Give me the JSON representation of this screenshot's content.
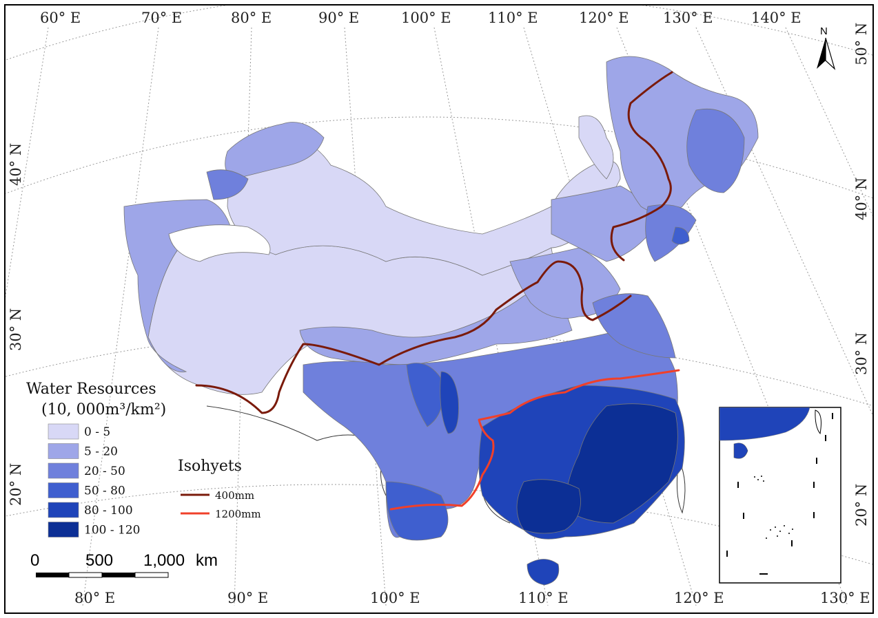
{
  "map": {
    "top_longitude_labels": [
      "60° E",
      "70° E",
      "80° E",
      "90° E",
      "100° E",
      "110° E",
      "120° E",
      "130° E",
      "140° E"
    ],
    "bottom_longitude_labels": [
      "80° E",
      "90° E",
      "100° E",
      "110° E",
      "120° E",
      "130° E"
    ],
    "left_latitude_labels": [
      "40° N",
      "30° N",
      "20° N"
    ],
    "right_latitude_labels": [
      "50° N",
      "40° N",
      "30° N",
      "20° N"
    ],
    "north_arrow_label": "N"
  },
  "legend": {
    "title_line1": "Water Resources",
    "title_line2": "(10, 000m³/km²)",
    "classes": [
      {
        "label": "0 - 5",
        "color": "#d8d8f6"
      },
      {
        "label": "5 - 20",
        "color": "#9ea6e8"
      },
      {
        "label": "20 - 50",
        "color": "#6f80dc"
      },
      {
        "label": "50 - 80",
        "color": "#3f5fcf"
      },
      {
        "label": "80 - 100",
        "color": "#1f44b9"
      },
      {
        "label": "100 - 120",
        "color": "#0c2f95"
      }
    ]
  },
  "isohyets": {
    "title": "Isohyets",
    "lines": [
      {
        "label": "400mm",
        "color": "#7a1a0a"
      },
      {
        "label": "1200mm",
        "color": "#f0402a"
      }
    ]
  },
  "scale_bar": {
    "labels": [
      "0",
      "500",
      "1,000",
      "km"
    ]
  }
}
